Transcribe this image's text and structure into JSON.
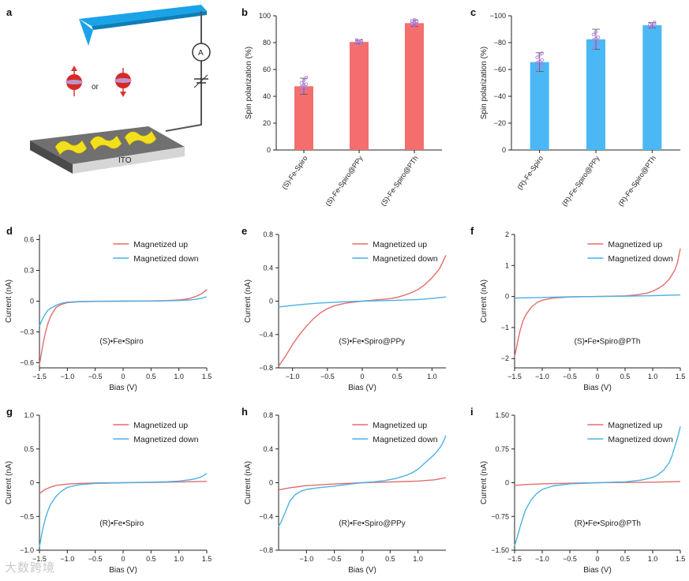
{
  "colors": {
    "up": "#e36d6d",
    "down": "#4bb1e4",
    "bar_s": "#f56e6e",
    "bar_r": "#4bb8f5",
    "dots": "#b47ae0",
    "tip": "#1aa3e8",
    "substrate": "#6a6a6a",
    "molecule": "#f2e01e"
  },
  "schematic": {
    "letter": "a",
    "or_label": "or",
    "ito_label": "ITO",
    "ammeter_label": "A"
  },
  "watermark": "大数跨境",
  "chart_data": [
    {
      "id": "b",
      "type": "bar",
      "letter": "b",
      "categories": [
        "(S)-Fe-Spiro",
        "(S)-Fe-Spiro@PPy",
        "(S)-Fe-Spiro@PTh"
      ],
      "values": [
        47.5,
        80.5,
        94.5
      ],
      "errors": [
        6,
        1.5,
        2.5
      ],
      "ylabel": "Spin polarization (%)",
      "ylim": [
        0,
        100
      ],
      "yticks": [
        0,
        20,
        40,
        60,
        80,
        100
      ],
      "ytick_labels": [
        "0",
        "20",
        "40",
        "60",
        "80",
        "100"
      ],
      "color_key": "bar_s",
      "points": [
        [
          43,
          45,
          46,
          47,
          48,
          49,
          50,
          52,
          54
        ],
        [
          79,
          79.5,
          80,
          80.5,
          81,
          81.5,
          82
        ],
        [
          92,
          93,
          94,
          94.5,
          95,
          95.5,
          96,
          97
        ]
      ]
    },
    {
      "id": "c",
      "type": "bar",
      "letter": "c",
      "categories": [
        "(R)-Fe-Spiro",
        "(R)-Fe-Spiro@PPy",
        "(R)-Fe-Spiro@PTh"
      ],
      "values": [
        -65.5,
        -82.5,
        -93
      ],
      "errors": [
        7,
        7.5,
        2
      ],
      "ylabel": "Spin polarization (%)",
      "ylim": [
        0,
        -100
      ],
      "yticks": [
        0,
        -20,
        -40,
        -60,
        -80,
        -100
      ],
      "ytick_labels": [
        "0",
        "−20",
        "−40",
        "−60",
        "−80",
        "−100"
      ],
      "color_key": "bar_r",
      "points": [
        [
          -59,
          -62,
          -64,
          -65,
          -66,
          -67,
          -69,
          -71,
          -72
        ],
        [
          -76,
          -78,
          -80,
          -82,
          -83,
          -84,
          -86,
          -88
        ],
        [
          -91,
          -92,
          -93,
          -93.5,
          -94,
          -95
        ]
      ]
    },
    {
      "id": "d",
      "type": "line",
      "letter": "d",
      "xlim": [
        -1.5,
        1.5
      ],
      "ylim": [
        -0.65,
        0.65
      ],
      "xticks": [
        -1.5,
        -1.0,
        -0.5,
        0,
        0.5,
        1.0,
        1.5
      ],
      "xtick_labels": [
        "−1.5",
        "−1.0",
        "−0.5",
        "0",
        "0.5",
        "1.0",
        "1.5"
      ],
      "yticks": [
        -0.6,
        -0.3,
        0,
        0.3,
        0.6
      ],
      "ytick_labels": [
        "−0.6",
        "−0.3",
        "0",
        "0.3",
        "0.6"
      ],
      "xlabel": "Bias (V)",
      "ylabel": "Current (nA)",
      "annotation": "(S)•Fe•Spiro",
      "legend": [
        "Magnetized up",
        "Magnetized down"
      ],
      "series": [
        {
          "name": "Magnetized up",
          "color_key": "up",
          "x": [
            -1.5,
            -1.45,
            -1.4,
            -1.35,
            -1.3,
            -1.25,
            -1.2,
            -1.1,
            -1.0,
            -0.8,
            -0.5,
            0,
            0.5,
            0.8,
            1.0,
            1.1,
            1.2,
            1.3,
            1.4,
            1.45,
            1.5
          ],
          "y": [
            -0.62,
            -0.46,
            -0.32,
            -0.22,
            -0.15,
            -0.1,
            -0.06,
            -0.03,
            -0.015,
            -0.006,
            -0.002,
            0,
            0.002,
            0.006,
            0.012,
            0.018,
            0.028,
            0.045,
            0.07,
            0.09,
            0.115
          ]
        },
        {
          "name": "Magnetized down",
          "color_key": "down",
          "x": [
            -1.5,
            -1.45,
            -1.4,
            -1.35,
            -1.3,
            -1.2,
            -1.1,
            -1.0,
            -0.8,
            -0.5,
            0,
            0.5,
            0.8,
            1.0,
            1.2,
            1.3,
            1.4,
            1.5
          ],
          "y": [
            -0.24,
            -0.18,
            -0.13,
            -0.09,
            -0.07,
            -0.04,
            -0.02,
            -0.01,
            -0.004,
            -0.001,
            0,
            0.001,
            0.003,
            0.006,
            0.012,
            0.018,
            0.028,
            0.042
          ]
        }
      ]
    },
    {
      "id": "e",
      "type": "line",
      "letter": "e",
      "xlim": [
        -1.2,
        1.2
      ],
      "ylim": [
        -0.8,
        0.8
      ],
      "xticks": [
        -1.0,
        -0.5,
        0,
        0.5,
        1.0
      ],
      "xtick_labels": [
        "−1.0",
        "−0.5",
        "0",
        "0.5",
        "1.0"
      ],
      "yticks": [
        -0.8,
        -0.4,
        0,
        0.4,
        0.8
      ],
      "ytick_labels": [
        "−0.8",
        "−0.4",
        "0",
        "0.4",
        "0.8"
      ],
      "xlabel": "Bias (V)",
      "ylabel": "Current (nA)",
      "annotation": "(S)•Fe•Spiro@PPy",
      "legend": [
        "Magnetized up",
        "Magnetized down"
      ],
      "series": [
        {
          "name": "Magnetized up",
          "color_key": "up",
          "x": [
            -1.2,
            -1.1,
            -1.0,
            -0.9,
            -0.8,
            -0.7,
            -0.6,
            -0.5,
            -0.4,
            -0.3,
            -0.2,
            0,
            0.2,
            0.4,
            0.5,
            0.6,
            0.7,
            0.8,
            0.9,
            1.0,
            1.1,
            1.15,
            1.2
          ],
          "y": [
            -0.78,
            -0.66,
            -0.52,
            -0.4,
            -0.3,
            -0.21,
            -0.14,
            -0.09,
            -0.055,
            -0.035,
            -0.02,
            0,
            0.015,
            0.03,
            0.045,
            0.07,
            0.1,
            0.14,
            0.2,
            0.28,
            0.38,
            0.46,
            0.55
          ]
        },
        {
          "name": "Magnetized down",
          "color_key": "down",
          "x": [
            -1.2,
            -1.0,
            -0.8,
            -0.6,
            -0.4,
            -0.2,
            0,
            0.2,
            0.4,
            0.6,
            0.8,
            1.0,
            1.2
          ],
          "y": [
            -0.07,
            -0.05,
            -0.035,
            -0.022,
            -0.013,
            -0.006,
            0,
            0.004,
            0.008,
            0.013,
            0.02,
            0.032,
            0.05
          ]
        }
      ]
    },
    {
      "id": "f",
      "type": "line",
      "letter": "f",
      "xlim": [
        -1.5,
        1.5
      ],
      "ylim": [
        -2.3,
        2.0
      ],
      "xticks": [
        -1.5,
        -1.0,
        -0.5,
        0,
        0.5,
        1.0,
        1.5
      ],
      "xtick_labels": [
        "−1.5",
        "−1.0",
        "−0.5",
        "0",
        "0.5",
        "1.0",
        "1.5"
      ],
      "yticks": [
        -2,
        -1,
        0,
        1,
        2
      ],
      "ytick_labels": [
        "−2",
        "−1",
        "0",
        "1",
        "2"
      ],
      "xlabel": "Bias (V)",
      "ylabel": "Current (nA)",
      "annotation": "(S)•Fe•Spiro@PTh",
      "legend": [
        "Magnetized up",
        "Magnetized down"
      ],
      "series": [
        {
          "name": "Magnetized up",
          "color_key": "up",
          "x": [
            -1.5,
            -1.45,
            -1.4,
            -1.35,
            -1.3,
            -1.2,
            -1.1,
            -1.0,
            -0.8,
            -0.5,
            0,
            0.5,
            0.7,
            0.9,
            1.0,
            1.1,
            1.2,
            1.3,
            1.4,
            1.45,
            1.5
          ],
          "y": [
            -1.95,
            -1.5,
            -1.1,
            -0.8,
            -0.6,
            -0.35,
            -0.2,
            -0.12,
            -0.05,
            -0.015,
            0,
            0.02,
            0.05,
            0.11,
            0.17,
            0.26,
            0.38,
            0.56,
            0.85,
            1.1,
            1.55
          ]
        },
        {
          "name": "Magnetized down",
          "color_key": "down",
          "x": [
            -1.5,
            -1.0,
            -0.5,
            0,
            0.5,
            1.0,
            1.5
          ],
          "y": [
            -0.05,
            -0.03,
            -0.01,
            0,
            0.01,
            0.025,
            0.05
          ]
        }
      ]
    },
    {
      "id": "g",
      "type": "line",
      "letter": "g",
      "xlim": [
        -1.5,
        1.5
      ],
      "ylim": [
        -1.0,
        1.0
      ],
      "xticks": [
        -1.5,
        -1.0,
        -0.5,
        0,
        0.5,
        1.0,
        1.5
      ],
      "xtick_labels": [
        "−1.5",
        "−1.0",
        "−0.5",
        "0",
        "0.5",
        "1.0",
        "1.5"
      ],
      "yticks": [
        -1.0,
        -0.5,
        0,
        0.5,
        1.0
      ],
      "ytick_labels": [
        "−1.0",
        "−0.5",
        "0",
        "0.5",
        "1.0"
      ],
      "xlabel": "Bias (V)",
      "ylabel": "Current (nA)",
      "annotation": "(R)•Fe•Spiro",
      "legend": [
        "Magnetized up",
        "Magnetized down"
      ],
      "series": [
        {
          "name": "Magnetized up",
          "color_key": "up",
          "x": [
            -1.5,
            -1.4,
            -1.3,
            -1.2,
            -1.0,
            -0.8,
            -0.5,
            0,
            0.5,
            1.0,
            1.5
          ],
          "y": [
            -0.16,
            -0.1,
            -0.065,
            -0.04,
            -0.02,
            -0.01,
            -0.004,
            0,
            0.004,
            0.01,
            0.02
          ]
        },
        {
          "name": "Magnetized down",
          "color_key": "down",
          "x": [
            -1.5,
            -1.45,
            -1.4,
            -1.35,
            -1.3,
            -1.2,
            -1.1,
            -1.0,
            -0.8,
            -0.5,
            0,
            0.5,
            0.8,
            1.0,
            1.2,
            1.3,
            1.4,
            1.45,
            1.5
          ],
          "y": [
            -0.95,
            -0.72,
            -0.55,
            -0.42,
            -0.32,
            -0.2,
            -0.12,
            -0.07,
            -0.03,
            -0.01,
            0,
            0.008,
            0.015,
            0.025,
            0.045,
            0.06,
            0.085,
            0.11,
            0.14
          ]
        }
      ]
    },
    {
      "id": "h",
      "type": "line",
      "letter": "h",
      "xlim": [
        -1.5,
        1.5
      ],
      "ylim": [
        -0.8,
        0.8
      ],
      "xticks": [
        -1.0,
        -0.5,
        0,
        0.5,
        1.0
      ],
      "xtick_labels": [
        "−1.0",
        "−0.5",
        "0",
        "0.5",
        "1.0"
      ],
      "yticks": [
        -0.8,
        -0.4,
        0,
        0.4,
        0.8
      ],
      "ytick_labels": [
        "−0.8",
        "−0.4",
        "0",
        "0.4",
        "0.8"
      ],
      "xlabel": "Bias (V)",
      "ylabel": "Current (nA)",
      "annotation": "(R)•Fe•Spiro@PPy",
      "legend": [
        "Magnetized up",
        "Magnetized down"
      ],
      "series": [
        {
          "name": "Magnetized up",
          "color_key": "up",
          "x": [
            -1.5,
            -1.3,
            -1.0,
            -0.5,
            0,
            0.5,
            1.0,
            1.3,
            1.5
          ],
          "y": [
            -0.085,
            -0.06,
            -0.035,
            -0.015,
            0,
            0.008,
            0.02,
            0.035,
            0.06
          ]
        },
        {
          "name": "Magnetized down",
          "color_key": "down",
          "x": [
            -1.5,
            -1.45,
            -1.4,
            -1.35,
            -1.3,
            -1.2,
            -1.1,
            -1.0,
            -0.8,
            -0.5,
            -0.2,
            0,
            0.2,
            0.4,
            0.6,
            0.8,
            0.9,
            1.0,
            1.1,
            1.2,
            1.3,
            1.4,
            1.45,
            1.5
          ],
          "y": [
            -0.52,
            -0.46,
            -0.38,
            -0.3,
            -0.22,
            -0.14,
            -0.1,
            -0.08,
            -0.06,
            -0.04,
            -0.015,
            0,
            0.01,
            0.025,
            0.05,
            0.09,
            0.12,
            0.16,
            0.22,
            0.28,
            0.34,
            0.42,
            0.48,
            0.56
          ]
        }
      ]
    },
    {
      "id": "i",
      "type": "line",
      "letter": "i",
      "xlim": [
        -1.5,
        1.5
      ],
      "ylim": [
        -1.5,
        1.5
      ],
      "xticks": [
        -1.5,
        -1.0,
        -0.5,
        0,
        0.5,
        1.0,
        1.5
      ],
      "xtick_labels": [
        "−1.5",
        "−1.0",
        "−0.5",
        "0",
        "0.5",
        "1.0",
        "1.5"
      ],
      "yticks": [
        -1.5,
        -0.75,
        0,
        0.75,
        1.5
      ],
      "ytick_labels": [
        "−1.50",
        "−0.75",
        "0",
        "0.75",
        "1.50"
      ],
      "xlabel": "Bias (V)",
      "ylabel": "Current (nA)",
      "annotation": "(R)•Fe•Spiro@PTh",
      "legend": [
        "Magnetized up",
        "Magnetized down"
      ],
      "series": [
        {
          "name": "Magnetized up",
          "color_key": "up",
          "x": [
            -1.5,
            -1.3,
            -1.0,
            -0.5,
            0,
            0.5,
            1.0,
            1.5
          ],
          "y": [
            -0.06,
            -0.04,
            -0.025,
            -0.01,
            0,
            0.005,
            0.012,
            0.025
          ]
        },
        {
          "name": "Magnetized down",
          "color_key": "down",
          "x": [
            -1.5,
            -1.45,
            -1.4,
            -1.35,
            -1.3,
            -1.2,
            -1.1,
            -1.0,
            -0.8,
            -0.5,
            0,
            0.5,
            0.8,
            1.0,
            1.1,
            1.2,
            1.3,
            1.35,
            1.4,
            1.45,
            1.5
          ],
          "y": [
            -1.4,
            -1.2,
            -0.98,
            -0.78,
            -0.6,
            -0.38,
            -0.24,
            -0.15,
            -0.07,
            -0.025,
            0,
            0.02,
            0.06,
            0.12,
            0.18,
            0.28,
            0.45,
            0.6,
            0.8,
            1.0,
            1.25
          ]
        }
      ]
    }
  ]
}
